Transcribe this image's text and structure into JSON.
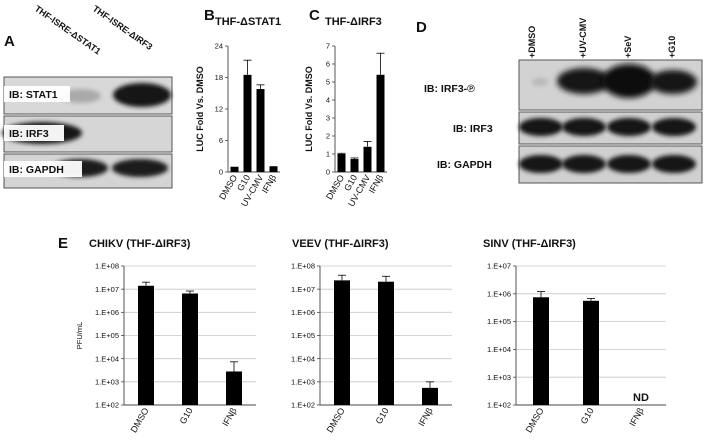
{
  "panel_labels": {
    "a": "A",
    "b": "B",
    "c": "C",
    "d": "D",
    "e": "E"
  },
  "panel_a": {
    "lanes": [
      "THF-ISRE-ΔSTAT1",
      "THF-ISRE-ΔIRF3"
    ],
    "blots": [
      "IB: STAT1",
      "IB: IRF3",
      "IB: GAPDH"
    ]
  },
  "panel_d": {
    "lanes": [
      "+DMSO",
      "+UV-CMV",
      "+SeV",
      "+G10"
    ],
    "blots": [
      "IB: IRF3-℗",
      "IB: IRF3",
      "IB: GAPDH"
    ]
  },
  "chart_data": [
    {
      "id": "B",
      "type": "bar",
      "title": "THF-ΔSTAT1",
      "ylabel": "LUC Fold Vs. DMSO",
      "categories": [
        "DMSO",
        "G10",
        "UV-CMV",
        "IFNβ"
      ],
      "values": [
        1,
        18.5,
        15.8,
        1.1
      ],
      "errors": [
        0,
        2.8,
        0.8,
        0
      ],
      "ylim": [
        0,
        24
      ],
      "yticks": [
        "0",
        "6",
        "12",
        "18",
        "24"
      ],
      "log": false
    },
    {
      "id": "C",
      "type": "bar",
      "title": "THF-ΔIRF3",
      "ylabel": "LUC Fold Vs. DMSO",
      "categories": [
        "DMSO",
        "G10",
        "UV-CMV",
        "IFNβ"
      ],
      "values": [
        1.0,
        0.72,
        1.4,
        5.4
      ],
      "errors": [
        0.04,
        0.06,
        0.3,
        1.2
      ],
      "ylim": [
        0,
        7
      ],
      "yticks": [
        "0",
        "1",
        "2",
        "3",
        "4",
        "5",
        "6",
        "7"
      ],
      "log": false
    },
    {
      "id": "E1",
      "type": "bar",
      "title": "CHIKV (THF-ΔIRF3)",
      "ylabel": "PFU/mL",
      "categories": [
        "DMSO",
        "G10",
        "IFNβ"
      ],
      "values": [
        14000000,
        6500000,
        2800
      ],
      "errors": [
        6000000,
        1800000,
        4500
      ],
      "ylim": [
        100,
        100000000
      ],
      "yticks": [
        "1.E+02",
        "1.E+03",
        "1.E+04",
        "1.E+05",
        "1.E+06",
        "1.E+07",
        "1.E+08"
      ],
      "log": true
    },
    {
      "id": "E2",
      "type": "bar",
      "title": "VEEV (THF-ΔIRF3)",
      "ylabel": "",
      "categories": [
        "DMSO",
        "G10",
        "IFNβ"
      ],
      "values": [
        24000000,
        21000000,
        550
      ],
      "errors": [
        16000000,
        15000000,
        450
      ],
      "ylim": [
        100,
        100000000
      ],
      "yticks": [
        "1.E+02",
        "1.E+03",
        "1.E+04",
        "1.E+05",
        "1.E+06",
        "1.E+07",
        "1.E+08"
      ],
      "log": true
    },
    {
      "id": "E3",
      "type": "bar",
      "title": "SINV (THF-ΔIRF3)",
      "ylabel": "",
      "categories": [
        "DMSO",
        "G10",
        "IFNβ"
      ],
      "values": [
        750000,
        560000,
        null
      ],
      "errors": [
        450000,
        120000,
        null
      ],
      "annotations": [
        null,
        null,
        "ND"
      ],
      "ylim": [
        100,
        10000000
      ],
      "yticks": [
        "1.E+02",
        "1.E+03",
        "1.E+04",
        "1.E+05",
        "1.E+06",
        "1.E+07"
      ],
      "log": true
    }
  ]
}
